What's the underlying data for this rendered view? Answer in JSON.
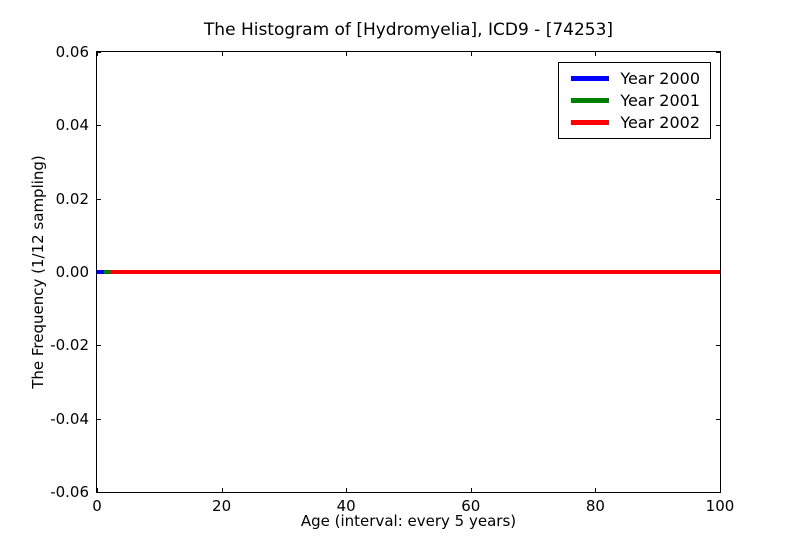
{
  "chart_data": {
    "type": "line",
    "title": "The Histogram of [Hydromyelia], ICD9 - [74253]",
    "xlabel": "Age (interval: every 5 years)",
    "ylabel": "The Frequency (1/12 sampling)",
    "xlim": [
      0,
      100
    ],
    "ylim": [
      -0.06,
      0.06
    ],
    "xticks": [
      0,
      20,
      40,
      60,
      80,
      100
    ],
    "xtick_labels": [
      "0",
      "20",
      "40",
      "60",
      "80",
      "100"
    ],
    "yticks": [
      -0.06,
      -0.04,
      -0.02,
      0,
      0.02,
      0.04,
      0.06
    ],
    "ytick_labels": [
      "-0.06",
      "-0.04",
      "-0.02",
      "0.00",
      "0.02",
      "0.04",
      "0.06"
    ],
    "grid": false,
    "legend": {
      "position": "upper-right",
      "entries": [
        "Year 2000",
        "Year 2001",
        "Year 2002"
      ]
    },
    "series": [
      {
        "name": "Year 2000",
        "color": "#0000ff",
        "x": [
          0,
          100
        ],
        "y": [
          0,
          0
        ]
      },
      {
        "name": "Year 2001",
        "color": "#008000",
        "x": [
          0,
          100
        ],
        "y": [
          0,
          0
        ]
      },
      {
        "name": "Year 2002",
        "color": "#ff0000",
        "x": [
          0,
          100
        ],
        "y": [
          0,
          0
        ]
      }
    ],
    "colors": {
      "axis": "#000000",
      "background": "#ffffff"
    }
  }
}
